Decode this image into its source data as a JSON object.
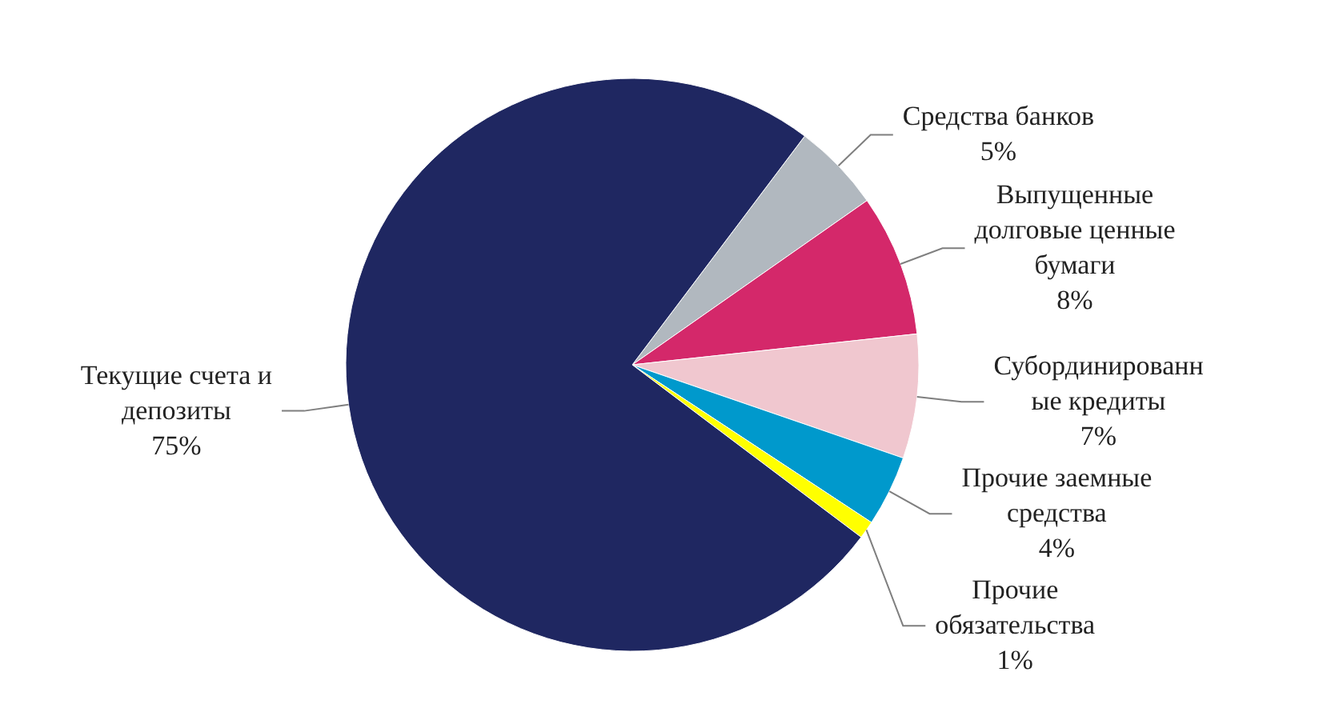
{
  "chart_data": {
    "type": "pie",
    "categories": [
      "Средства банков",
      "Выпущенные долговые ценные бумаги",
      "Субординированные кредиты",
      "Прочие заемные средства",
      "Прочие обязательства",
      "Текущие счета и депозиты"
    ],
    "values": [
      5,
      8,
      7,
      4,
      1,
      75
    ],
    "colors": [
      "#b1b8bf",
      "#d4286a",
      "#f0c7cf",
      "#0099cc",
      "#ffff00",
      "#1f2761"
    ],
    "value_labels": [
      "5%",
      "8%",
      "7%",
      "4%",
      "1%",
      "75%"
    ]
  }
}
